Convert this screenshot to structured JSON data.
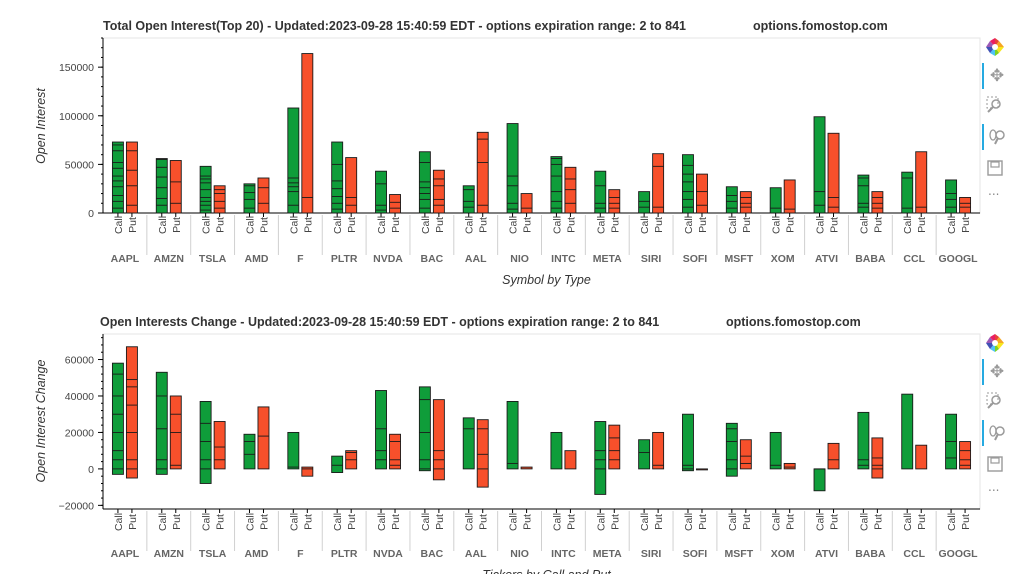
{
  "chart_data": [
    {
      "type": "bar",
      "title": "Total Open Interest(Top 20) - Updated:2023-09-28 15:40:59 EDT - options expiration range: 2 to 841",
      "site": "options.fomostop.com",
      "xlabel": "Symbol by Type",
      "ylabel": "Open Interest",
      "ylim": [
        0,
        180000
      ],
      "yticks": [
        "0",
        "50000",
        "100000",
        "150000"
      ],
      "ytick_values": [
        0,
        50000,
        100000,
        150000
      ],
      "sub_categories": [
        "Call",
        "Put"
      ],
      "categories": [
        "AAPL",
        "AMZN",
        "TSLA",
        "AMD",
        "F",
        "PLTR",
        "NVDA",
        "BAC",
        "AAL",
        "NIO",
        "INTC",
        "META",
        "SIRI",
        "SOFI",
        "MSFT",
        "XOM",
        "ATVI",
        "BABA",
        "CCL",
        "GOOGL"
      ],
      "series": [
        {
          "name": "Call",
          "color": "#0f9d3a",
          "values": [
            73000,
            56000,
            48000,
            30000,
            108000,
            73000,
            43000,
            63000,
            28000,
            92000,
            58000,
            43000,
            22000,
            60000,
            27000,
            26000,
            99000,
            39000,
            42000,
            34000
          ],
          "segments": [
            [
              5000,
              12000,
              18000,
              27000,
              33000,
              38000,
              46000,
              52000,
              64000,
              70000
            ],
            [
              8000,
              15000,
              26000,
              37000,
              47000,
              55000
            ],
            [
              3000,
              8000,
              12000,
              16000,
              24000,
              31000,
              35000,
              38000
            ],
            [
              5000,
              14000,
              21000,
              28000
            ],
            [
              8000,
              22000,
              27000,
              31000,
              36000
            ],
            [
              4000,
              10000,
              17000,
              25000,
              33000,
              50000
            ],
            [
              3000,
              8000,
              30000
            ],
            [
              5000,
              14000,
              20000,
              26000,
              32000,
              52000
            ],
            [
              6000,
              12000,
              24000
            ],
            [
              4000,
              10000,
              28000,
              38000
            ],
            [
              5000,
              12000,
              22000,
              38000,
              50000,
              56000
            ],
            [
              5000,
              10000,
              28000
            ],
            [
              6000,
              12000
            ],
            [
              6000,
              14000,
              22000,
              32000,
              40000,
              49000
            ],
            [
              5000,
              12000,
              18000
            ],
            [
              5000
            ],
            [
              8000,
              22000
            ],
            [
              6000,
              10000,
              28000,
              36000
            ],
            [
              5000,
              36000
            ],
            [
              6000,
              14000,
              20000
            ]
          ]
        },
        {
          "name": "Put",
          "color": "#f7502b",
          "values": [
            73000,
            54000,
            28000,
            36000,
            164000,
            57000,
            19000,
            44000,
            83000,
            20000,
            47000,
            24000,
            61000,
            40000,
            22000,
            34000,
            82000,
            22000,
            63000,
            16000
          ],
          "segments": [
            [
              8000,
              28000,
              44000,
              64000
            ],
            [
              10000,
              32000
            ],
            [
              5000,
              12000,
              20000,
              24000
            ],
            [
              10000,
              26000
            ],
            [
              16000
            ],
            [
              8000,
              16000
            ],
            [
              5000,
              11000
            ],
            [
              8000,
              14000,
              28000,
              35000
            ],
            [
              8000,
              52000,
              76000
            ],
            [
              5000
            ],
            [
              10000,
              24000,
              35000
            ],
            [
              5000,
              10000,
              16000
            ],
            [
              6000,
              48000
            ],
            [
              8000,
              22000
            ],
            [
              6000,
              10000,
              16000
            ],
            [
              4000
            ],
            [
              6000,
              16000
            ],
            [
              5000,
              10000,
              16000
            ],
            [
              6000
            ],
            [
              6000,
              10000
            ]
          ]
        }
      ]
    },
    {
      "type": "bar",
      "title": "Open Interests Change - Updated:2023-09-28 15:40:59 EDT - options expiration range: 2 to 841",
      "site": "options.fomostop.com",
      "xlabel": "Tickers by Call and Put",
      "ylabel": "Open Interest Change",
      "ylim": [
        -22000,
        74000
      ],
      "yticks": [
        "−20000",
        "0",
        "20000",
        "40000",
        "60000"
      ],
      "ytick_values": [
        -20000,
        0,
        20000,
        40000,
        60000
      ],
      "sub_categories": [
        "Call",
        "Put"
      ],
      "categories": [
        "AAPL",
        "AMZN",
        "TSLA",
        "AMD",
        "F",
        "PLTR",
        "NVDA",
        "BAC",
        "AAL",
        "NIO",
        "INTC",
        "META",
        "SIRI",
        "SOFI",
        "MSFT",
        "XOM",
        "ATVI",
        "BABA",
        "CCL",
        "GOOGL"
      ],
      "series": [
        {
          "name": "Call",
          "color": "#0f9d3a",
          "lows": [
            -3000,
            -3000,
            -8000,
            0,
            0,
            -2000,
            0,
            -1000,
            0,
            0,
            0,
            -14000,
            0,
            -1000,
            -4000,
            0,
            -12000,
            0,
            0,
            0
          ],
          "highs": [
            58000,
            53000,
            37000,
            19000,
            20000,
            7000,
            43000,
            45000,
            28000,
            37000,
            20000,
            26000,
            16000,
            30000,
            25000,
            20000,
            0,
            31000,
            41000,
            30000
          ],
          "segments": [
            [
              0,
              5000,
              10000,
              20000,
              30000,
              40000,
              52000
            ],
            [
              0,
              5000,
              22000,
              40000
            ],
            [
              0,
              5000,
              15000,
              25000
            ],
            [
              8000,
              15000
            ],
            [
              1000
            ],
            [
              2000
            ],
            [
              0,
              5000,
              10000,
              22000
            ],
            [
              0,
              5000,
              20000,
              38000
            ],
            [
              0,
              22000
            ],
            [
              0,
              3000
            ],
            [
              0
            ],
            [
              0,
              5000,
              10000
            ],
            [
              0,
              9000
            ],
            [
              0,
              2000
            ],
            [
              0,
              5000,
              15000,
              22000
            ],
            [
              0,
              2000
            ],
            [
              0
            ],
            [
              0,
              2000,
              5000
            ],
            [
              0
            ],
            [
              0,
              6000,
              15000
            ]
          ]
        },
        {
          "name": "Put",
          "color": "#f7502b",
          "lows": [
            -5000,
            0,
            0,
            0,
            -4000,
            0,
            0,
            -6000,
            -10000,
            0,
            0,
            0,
            0,
            0,
            0,
            0,
            0,
            -5000,
            0,
            0
          ],
          "highs": [
            67000,
            40000,
            26000,
            34000,
            1000,
            10000,
            19000,
            38000,
            27000,
            1000,
            10000,
            24000,
            20000,
            0,
            16000,
            3000,
            14000,
            17000,
            13000,
            15000
          ],
          "segments": [
            [
              0,
              5000,
              20000,
              35000,
              45000,
              49000
            ],
            [
              0,
              2000,
              20000,
              30000
            ],
            [
              0,
              5000,
              12000
            ],
            [
              0,
              18000
            ],
            [
              0
            ],
            [
              0,
              5000,
              9000
            ],
            [
              0,
              2000,
              5000,
              15000
            ],
            [
              0,
              5000,
              10000
            ],
            [
              0,
              8000,
              22000
            ],
            [
              0
            ],
            [
              0
            ],
            [
              0,
              5000,
              10000,
              17000
            ],
            [
              0,
              2000
            ],
            [
              0
            ],
            [
              0,
              3000,
              7000
            ],
            [
              0,
              1000
            ],
            [
              0,
              5000
            ],
            [
              0,
              2000,
              6000
            ],
            [
              0
            ],
            [
              0,
              2000,
              5000,
              10000
            ]
          ]
        }
      ]
    }
  ],
  "toolbar": {
    "icons": [
      "bokeh-logo-icon",
      "pan-icon",
      "box-zoom-icon",
      "wheel-zoom-icon",
      "save-icon",
      "more-icon"
    ],
    "more_label": "..."
  }
}
